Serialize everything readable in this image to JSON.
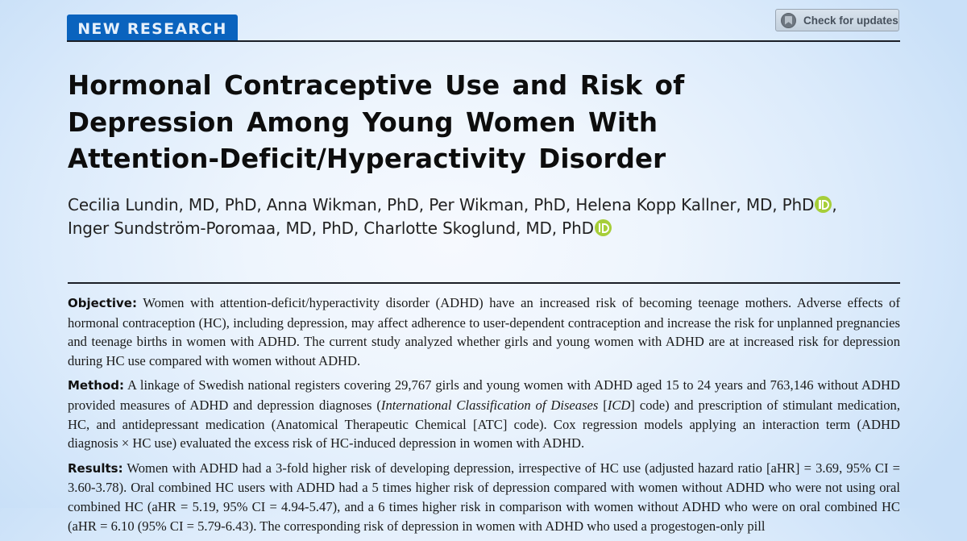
{
  "header": {
    "section_tab": "NEW RESEARCH",
    "check_updates_button": "Check for updates",
    "check_updates_icon": "crossmark-icon"
  },
  "article": {
    "title_lines": [
      "Hormonal Contraceptive Use and Risk of",
      "Depression Among Young Women With",
      "Attention-Deficit/Hyperactivity Disorder"
    ],
    "author_lines": [
      "Cecilia Lundin, MD, PhD, Anna Wikman, PhD, Per Wikman, PhD, Helena Kopp Kallner, MD, PhD",
      "Inger Sundström-Poromaa, MD, PhD, Charlotte Skoglund, MD, PhD"
    ],
    "author_line1_suffix": ",",
    "orcid_icon": "orcid-icon",
    "orcid_color": "#a6ce39"
  },
  "abstract": {
    "objective": {
      "label": "Objective:",
      "text": "Women with attention-deficit/hyperactivity disorder (ADHD) have an increased risk of becoming teenage mothers. Adverse effects of hormonal contraception (HC), including depression, may affect adherence to user-dependent contraception and increase the risk for unplanned pregnancies and teenage births in women with ADHD. The current study analyzed whether girls and young women with ADHD are at increased risk for depression during HC use compared with women without ADHD."
    },
    "method": {
      "label": "Method:",
      "text_before_italic": "A linkage of Swedish national registers covering 29,767 girls and young women with ADHD aged 15 to 24 years and 763,146 without ADHD provided measures of ADHD and depression diagnoses (",
      "italic_1": "International Classification of Diseases",
      "text_mid": " [",
      "italic_2": "ICD",
      "text_after": "] code) and prescription of stimulant medication, HC, and antidepressant medication (Anatomical Therapeutic Chemical [ATC] code). Cox regression models applying an interaction term (ADHD diagnosis × HC use) evaluated the excess risk of HC-induced depression in women with ADHD."
    },
    "results": {
      "label": "Results:",
      "text": "Women with ADHD had a 3-fold higher risk of developing depression, irrespective of HC use (adjusted hazard ratio [aHR] = 3.69, 95% CI = 3.60-3.78). Oral combined HC users with ADHD had a 5 times higher risk of depression compared with women without ADHD who were not using oral combined HC (aHR = 5.19, 95% CI = 4.94-5.47), and a 6 times higher risk in comparison with women without ADHD who were on oral combined HC (aHR = 6.10 (95% CI = 5.79-6.43). The corresponding risk of depression in women with ADHD who used a progestogen-only pill"
    }
  },
  "colors": {
    "tab_blue": "#0a63be",
    "rule": "#1b1f27",
    "background_center": "#f6f9fe",
    "background_edge": "#c9e0f8"
  }
}
